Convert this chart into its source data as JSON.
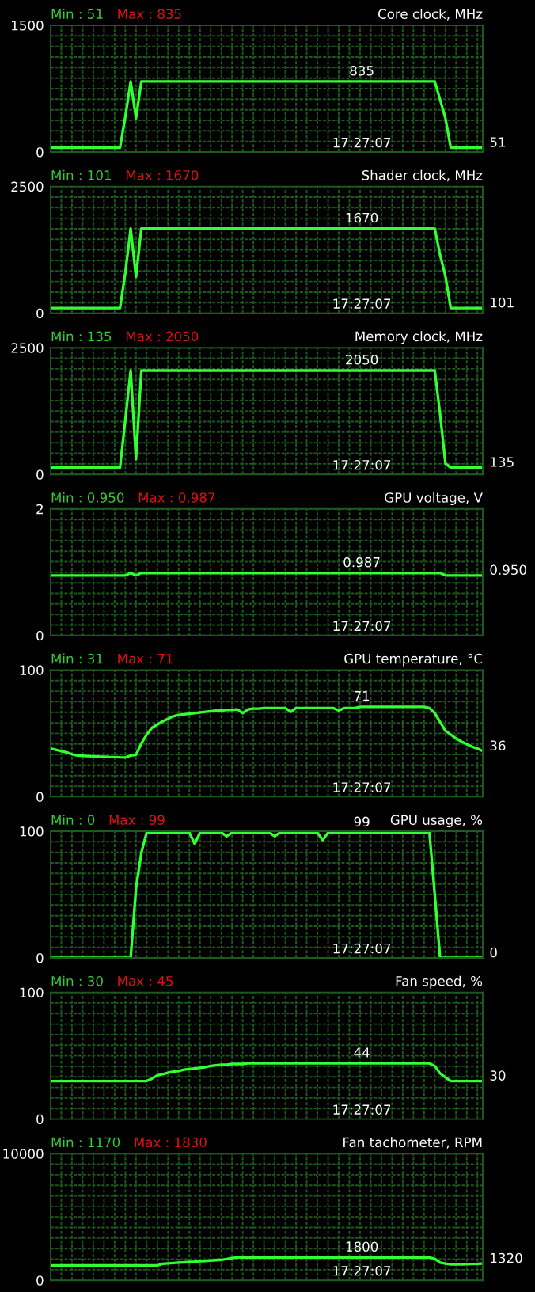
{
  "chart_data": [
    {
      "type": "line",
      "title": "Core clock, MHz",
      "annotations": [
        "Min : 51",
        "Max : 835",
        "17:27:07",
        {
          "text": "835",
          "y": 835
        },
        "51"
      ],
      "categories": [
        null,
        null,
        null,
        null,
        null,
        null,
        null,
        null,
        null,
        null,
        null,
        null,
        null,
        null,
        null,
        null,
        null,
        null,
        null,
        null,
        null,
        null,
        null,
        null,
        null,
        null,
        null,
        null,
        null,
        null,
        null,
        null,
        null,
        null,
        null,
        null,
        null,
        null,
        null,
        null,
        null,
        null,
        null,
        null,
        null,
        null,
        null,
        null,
        null,
        null,
        null,
        null,
        null,
        null,
        null,
        null,
        null,
        null,
        null,
        null,
        null,
        null,
        null,
        null,
        null,
        null,
        null,
        null,
        null,
        null,
        null,
        null,
        null,
        null,
        null,
        null,
        null,
        null,
        null,
        null,
        null,
        null
      ],
      "series": [
        {
          "color": "#33ff33",
          "values": [
            51,
            51,
            51,
            51,
            51,
            51,
            51,
            51,
            51,
            51,
            51,
            51,
            51,
            51,
            420,
            835,
            400,
            835,
            835,
            835,
            835,
            835,
            835,
            835,
            835,
            835,
            835,
            835,
            835,
            835,
            835,
            835,
            835,
            835,
            835,
            835,
            835,
            835,
            835,
            835,
            835,
            835,
            835,
            835,
            835,
            835,
            835,
            835,
            835,
            835,
            835,
            835,
            835,
            835,
            835,
            835,
            835,
            835,
            835,
            835,
            835,
            835,
            835,
            835,
            835,
            835,
            835,
            835,
            835,
            835,
            835,
            835,
            835,
            620,
            400,
            51,
            51,
            51,
            51,
            51,
            51,
            51
          ]
        }
      ],
      "ylim": [
        0,
        1500
      ],
      "yticks": [
        0,
        {
          "value": 125,
          "label": null
        },
        {
          "value": 250,
          "label": null
        },
        {
          "value": 375,
          "label": null
        },
        {
          "value": 500,
          "label": null
        },
        {
          "value": 625,
          "label": null
        },
        {
          "value": 750,
          "label": null
        },
        {
          "value": 875,
          "label": null
        },
        {
          "value": 1000,
          "label": null
        },
        {
          "value": 1125,
          "label": null
        },
        {
          "value": 1250,
          "label": null
        },
        {
          "value": 1375,
          "label": null
        },
        1500
      ],
      "tick_labels": "y",
      "grid": true
    },
    {
      "type": "line",
      "title": "Shader clock, MHz",
      "annotations": [
        "Min : 101",
        "Max : 1670",
        "17:27:07",
        {
          "text": "1670",
          "y": 1670
        },
        "101"
      ],
      "categories": [
        null,
        null,
        null,
        null,
        null,
        null,
        null,
        null,
        null,
        null,
        null,
        null,
        null,
        null,
        null,
        null,
        null,
        null,
        null,
        null,
        null,
        null,
        null,
        null,
        null,
        null,
        null,
        null,
        null,
        null,
        null,
        null,
        null,
        null,
        null,
        null,
        null,
        null,
        null,
        null,
        null,
        null,
        null,
        null,
        null,
        null,
        null,
        null,
        null,
        null,
        null,
        null,
        null,
        null,
        null,
        null,
        null,
        null,
        null,
        null,
        null,
        null,
        null,
        null,
        null,
        null,
        null,
        null,
        null,
        null,
        null,
        null,
        null,
        null,
        null,
        null,
        null,
        null,
        null,
        null,
        null,
        null
      ],
      "series": [
        {
          "color": "#33ff33",
          "values": [
            101,
            101,
            101,
            101,
            101,
            101,
            101,
            101,
            101,
            101,
            101,
            101,
            101,
            101,
            800,
            1670,
            720,
            1670,
            1670,
            1670,
            1670,
            1670,
            1670,
            1670,
            1670,
            1670,
            1670,
            1670,
            1670,
            1670,
            1670,
            1670,
            1670,
            1670,
            1670,
            1670,
            1670,
            1670,
            1670,
            1670,
            1670,
            1670,
            1670,
            1670,
            1670,
            1670,
            1670,
            1670,
            1670,
            1670,
            1670,
            1670,
            1670,
            1670,
            1670,
            1670,
            1670,
            1670,
            1670,
            1670,
            1670,
            1670,
            1670,
            1670,
            1670,
            1670,
            1670,
            1670,
            1670,
            1670,
            1670,
            1670,
            1670,
            1150,
            730,
            101,
            101,
            101,
            101,
            101,
            101,
            101
          ]
        }
      ],
      "ylim": [
        0,
        2500
      ],
      "yticks": [
        0,
        {
          "value": 208.3,
          "label": null
        },
        {
          "value": 416.7,
          "label": null
        },
        {
          "value": 625,
          "label": null
        },
        {
          "value": 833.3,
          "label": null
        },
        {
          "value": 1041.7,
          "label": null
        },
        {
          "value": 1250,
          "label": null
        },
        {
          "value": 1458.3,
          "label": null
        },
        {
          "value": 1666.7,
          "label": null
        },
        {
          "value": 1875,
          "label": null
        },
        {
          "value": 2083.3,
          "label": null
        },
        {
          "value": 2291.7,
          "label": null
        },
        2500
      ],
      "tick_labels": "y",
      "grid": true
    },
    {
      "type": "line",
      "title": "Memory clock, MHz",
      "annotations": [
        "Min : 135",
        "Max : 2050",
        "17:27:07",
        {
          "text": "2050",
          "y": 2050
        },
        "135"
      ],
      "categories": [
        null,
        null,
        null,
        null,
        null,
        null,
        null,
        null,
        null,
        null,
        null,
        null,
        null,
        null,
        null,
        null,
        null,
        null,
        null,
        null,
        null,
        null,
        null,
        null,
        null,
        null,
        null,
        null,
        null,
        null,
        null,
        null,
        null,
        null,
        null,
        null,
        null,
        null,
        null,
        null,
        null,
        null,
        null,
        null,
        null,
        null,
        null,
        null,
        null,
        null,
        null,
        null,
        null,
        null,
        null,
        null,
        null,
        null,
        null,
        null,
        null,
        null,
        null,
        null,
        null,
        null,
        null,
        null,
        null,
        null,
        null,
        null,
        null,
        null,
        null,
        null,
        null,
        null,
        null,
        null,
        null,
        null
      ],
      "series": [
        {
          "color": "#33ff33",
          "values": [
            135,
            135,
            135,
            135,
            135,
            135,
            135,
            135,
            135,
            135,
            135,
            135,
            135,
            135,
            1080,
            2050,
            300,
            2050,
            2050,
            2050,
            2050,
            2050,
            2050,
            2050,
            2050,
            2050,
            2050,
            2050,
            2050,
            2050,
            2050,
            2050,
            2050,
            2050,
            2050,
            2050,
            2050,
            2050,
            2050,
            2050,
            2050,
            2050,
            2050,
            2050,
            2050,
            2050,
            2050,
            2050,
            2050,
            2050,
            2050,
            2050,
            2050,
            2050,
            2050,
            2050,
            2050,
            2050,
            2050,
            2050,
            2050,
            2050,
            2050,
            2050,
            2050,
            2050,
            2050,
            2050,
            2050,
            2050,
            2050,
            2050,
            2050,
            1190,
            215,
            135,
            135,
            135,
            135,
            135,
            135,
            135
          ]
        }
      ],
      "ylim": [
        0,
        2500
      ],
      "yticks": [
        0,
        {
          "value": 208.3,
          "label": null
        },
        {
          "value": 416.7,
          "label": null
        },
        {
          "value": 625,
          "label": null
        },
        {
          "value": 833.3,
          "label": null
        },
        {
          "value": 1041.7,
          "label": null
        },
        {
          "value": 1250,
          "label": null
        },
        {
          "value": 1458.3,
          "label": null
        },
        {
          "value": 1666.7,
          "label": null
        },
        {
          "value": 1875,
          "label": null
        },
        {
          "value": 2083.3,
          "label": null
        },
        {
          "value": 2291.7,
          "label": null
        },
        2500
      ],
      "tick_labels": "y",
      "grid": true
    },
    {
      "type": "line",
      "title": "GPU voltage, V",
      "annotations": [
        "Min : 0.950",
        "Max : 0.987",
        "17:27:07",
        {
          "text": "0.987",
          "y": 0.987
        },
        "0.950"
      ],
      "categories": [
        null,
        null,
        null,
        null,
        null,
        null,
        null,
        null,
        null,
        null,
        null,
        null,
        null,
        null,
        null,
        null,
        null,
        null,
        null,
        null,
        null,
        null,
        null,
        null,
        null,
        null,
        null,
        null,
        null,
        null,
        null,
        null,
        null,
        null,
        null,
        null,
        null,
        null,
        null,
        null,
        null,
        null,
        null,
        null,
        null,
        null,
        null,
        null,
        null,
        null,
        null,
        null,
        null,
        null,
        null,
        null,
        null,
        null,
        null,
        null,
        null,
        null,
        null,
        null,
        null,
        null,
        null,
        null,
        null,
        null,
        null,
        null,
        null,
        null,
        null,
        null,
        null,
        null,
        null,
        null,
        null,
        null
      ],
      "series": [
        {
          "color": "#33ff33",
          "values": [
            0.95,
            0.95,
            0.95,
            0.95,
            0.95,
            0.95,
            0.95,
            0.95,
            0.95,
            0.95,
            0.95,
            0.95,
            0.95,
            0.95,
            0.95,
            0.987,
            0.95,
            0.987,
            0.987,
            0.987,
            0.987,
            0.987,
            0.987,
            0.987,
            0.987,
            0.987,
            0.987,
            0.987,
            0.987,
            0.987,
            0.987,
            0.987,
            0.987,
            0.987,
            0.987,
            0.987,
            0.987,
            0.987,
            0.987,
            0.987,
            0.987,
            0.987,
            0.987,
            0.987,
            0.987,
            0.987,
            0.987,
            0.987,
            0.987,
            0.987,
            0.987,
            0.987,
            0.987,
            0.987,
            0.987,
            0.987,
            0.987,
            0.987,
            0.987,
            0.987,
            0.987,
            0.987,
            0.987,
            0.987,
            0.987,
            0.987,
            0.987,
            0.987,
            0.987,
            0.987,
            0.987,
            0.987,
            0.987,
            0.987,
            0.95,
            0.95,
            0.95,
            0.95,
            0.95,
            0.95,
            0.95,
            0.95
          ]
        }
      ],
      "ylim": [
        0,
        2
      ],
      "yticks": [
        0,
        {
          "value": 0.167,
          "label": null
        },
        {
          "value": 0.333,
          "label": null
        },
        {
          "value": 0.5,
          "label": null
        },
        {
          "value": 0.667,
          "label": null
        },
        {
          "value": 0.833,
          "label": null
        },
        {
          "value": 1,
          "label": null
        },
        {
          "value": 1.167,
          "label": null
        },
        {
          "value": 1.333,
          "label": null
        },
        {
          "value": 1.5,
          "label": null
        },
        {
          "value": 1.667,
          "label": null
        },
        {
          "value": 1.833,
          "label": null
        },
        2
      ],
      "tick_labels": "y",
      "grid": true
    },
    {
      "type": "line",
      "title": "GPU temperature, °C",
      "annotations": [
        "Min : 31",
        "Max : 71",
        "17:27:07",
        {
          "text": "71",
          "y": 71
        },
        "36"
      ],
      "categories": [
        null,
        null,
        null,
        null,
        null,
        null,
        null,
        null,
        null,
        null,
        null,
        null,
        null,
        null,
        null,
        null,
        null,
        null,
        null,
        null,
        null,
        null,
        null,
        null,
        null,
        null,
        null,
        null,
        null,
        null,
        null,
        null,
        null,
        null,
        null,
        null,
        null,
        null,
        null,
        null,
        null,
        null,
        null,
        null,
        null,
        null,
        null,
        null,
        null,
        null,
        null,
        null,
        null,
        null,
        null,
        null,
        null,
        null,
        null,
        null,
        null,
        null,
        null,
        null,
        null,
        null,
        null,
        null,
        null,
        null,
        null,
        null,
        null,
        null,
        null,
        null,
        null,
        null,
        null,
        null,
        null,
        null
      ],
      "series": [
        {
          "color": "#33ff33",
          "values": [
            38,
            37,
            36,
            35,
            33.5,
            32.5,
            32.3,
            32.1,
            31.9,
            31.7,
            31.6,
            31.4,
            31.3,
            31.1,
            31,
            32.5,
            33,
            42,
            49,
            54.5,
            57,
            59.5,
            61.5,
            63.5,
            64.5,
            65,
            65.5,
            66,
            66.5,
            67,
            67.5,
            68,
            68,
            68.5,
            68.5,
            69,
            66,
            69,
            69.5,
            69.5,
            70,
            70,
            70,
            70,
            70,
            67,
            70,
            70,
            70,
            70,
            70,
            70,
            70,
            70,
            68,
            70,
            70,
            70,
            71,
            71,
            71,
            71,
            71,
            71,
            71,
            71,
            71,
            71,
            71,
            71,
            71,
            70,
            66,
            59,
            52,
            49,
            46,
            43.5,
            41.5,
            39.5,
            38,
            36
          ]
        }
      ],
      "ylim": [
        0,
        100
      ],
      "yticks": [
        0,
        {
          "value": 8.3,
          "label": null
        },
        {
          "value": 16.7,
          "label": null
        },
        {
          "value": 25,
          "label": null
        },
        {
          "value": 33.3,
          "label": null
        },
        {
          "value": 41.7,
          "label": null
        },
        {
          "value": 50,
          "label": null
        },
        {
          "value": 58.3,
          "label": null
        },
        {
          "value": 66.7,
          "label": null
        },
        {
          "value": 75,
          "label": null
        },
        {
          "value": 83.3,
          "label": null
        },
        {
          "value": 91.7,
          "label": null
        },
        100
      ],
      "tick_labels": "y",
      "grid": true
    },
    {
      "type": "line",
      "title": "GPU usage, %",
      "annotations": [
        "Min : 0",
        "Max : 99",
        "17:27:07",
        {
          "text": "99",
          "y": 99
        },
        "0"
      ],
      "categories": [
        null,
        null,
        null,
        null,
        null,
        null,
        null,
        null,
        null,
        null,
        null,
        null,
        null,
        null,
        null,
        null,
        null,
        null,
        null,
        null,
        null,
        null,
        null,
        null,
        null,
        null,
        null,
        null,
        null,
        null,
        null,
        null,
        null,
        null,
        null,
        null,
        null,
        null,
        null,
        null,
        null,
        null,
        null,
        null,
        null,
        null,
        null,
        null,
        null,
        null,
        null,
        null,
        null,
        null,
        null,
        null,
        null,
        null,
        null,
        null,
        null,
        null,
        null,
        null,
        null,
        null,
        null,
        null,
        null,
        null,
        null,
        null,
        null,
        null,
        null,
        null,
        null,
        null,
        null,
        null,
        null,
        null
      ],
      "series": [
        {
          "color": "#33ff33",
          "values": [
            0,
            0,
            0,
            0,
            0,
            0,
            0,
            0,
            0,
            0,
            0,
            0,
            0,
            0,
            0,
            0,
            55,
            83,
            99,
            99,
            99,
            99,
            99,
            99,
            99,
            99,
            99,
            90,
            99,
            99,
            99,
            99,
            99,
            96,
            99,
            99,
            99,
            99,
            99,
            99,
            99,
            99,
            96,
            99,
            99,
            99,
            99,
            99,
            99,
            99,
            99,
            93,
            99,
            99,
            99,
            99,
            99,
            99,
            99,
            99,
            99,
            99,
            99,
            99,
            99,
            99,
            99,
            99,
            99,
            99,
            99,
            99,
            50,
            0,
            0,
            0,
            0,
            0,
            0,
            0,
            0,
            0
          ]
        }
      ],
      "ylim": [
        0,
        100
      ],
      "yticks": [
        0,
        {
          "value": 8.3,
          "label": null
        },
        {
          "value": 16.7,
          "label": null
        },
        {
          "value": 25,
          "label": null
        },
        {
          "value": 33.3,
          "label": null
        },
        {
          "value": 41.7,
          "label": null
        },
        {
          "value": 50,
          "label": null
        },
        {
          "value": 58.3,
          "label": null
        },
        {
          "value": 66.7,
          "label": null
        },
        {
          "value": 75,
          "label": null
        },
        {
          "value": 83.3,
          "label": null
        },
        {
          "value": 91.7,
          "label": null
        },
        100
      ],
      "tick_labels": "y",
      "grid": true
    },
    {
      "type": "line",
      "title": "Fan speed, %",
      "annotations": [
        "Min : 30",
        "Max : 45",
        "17:27:07",
        {
          "text": "44",
          "y": 44
        },
        "30"
      ],
      "categories": [
        null,
        null,
        null,
        null,
        null,
        null,
        null,
        null,
        null,
        null,
        null,
        null,
        null,
        null,
        null,
        null,
        null,
        null,
        null,
        null,
        null,
        null,
        null,
        null,
        null,
        null,
        null,
        null,
        null,
        null,
        null,
        null,
        null,
        null,
        null,
        null,
        null,
        null,
        null,
        null,
        null,
        null,
        null,
        null,
        null,
        null,
        null,
        null,
        null,
        null,
        null,
        null,
        null,
        null,
        null,
        null,
        null,
        null,
        null,
        null,
        null,
        null,
        null,
        null,
        null,
        null,
        null,
        null,
        null,
        null,
        null,
        null,
        null,
        null,
        null,
        null,
        null,
        null,
        null,
        null,
        null,
        null
      ],
      "series": [
        {
          "color": "#33ff33",
          "values": [
            30,
            30,
            30,
            30,
            30,
            30,
            30,
            30,
            30,
            30,
            30,
            30,
            30,
            30,
            30,
            30,
            30,
            30,
            30,
            32,
            34.5,
            35.5,
            36.5,
            37.5,
            38,
            39,
            39.5,
            40,
            40.5,
            41,
            42,
            42.5,
            43,
            43,
            43.5,
            43.5,
            43.5,
            44,
            44,
            44,
            44,
            44,
            44,
            44,
            44,
            44,
            44,
            44,
            44,
            44,
            44,
            44,
            44,
            44,
            44,
            44,
            44,
            44,
            44,
            44,
            44,
            44,
            44,
            44,
            44,
            44,
            44,
            44,
            44,
            44,
            44,
            44,
            42,
            36,
            33,
            30,
            30,
            30,
            30,
            30,
            30,
            30
          ]
        }
      ],
      "ylim": [
        0,
        100
      ],
      "yticks": [
        0,
        {
          "value": 8.3,
          "label": null
        },
        {
          "value": 16.7,
          "label": null
        },
        {
          "value": 25,
          "label": null
        },
        {
          "value": 33.3,
          "label": null
        },
        {
          "value": 41.7,
          "label": null
        },
        {
          "value": 50,
          "label": null
        },
        {
          "value": 58.3,
          "label": null
        },
        {
          "value": 66.7,
          "label": null
        },
        {
          "value": 75,
          "label": null
        },
        {
          "value": 83.3,
          "label": null
        },
        {
          "value": 91.7,
          "label": null
        },
        100
      ],
      "tick_labels": "y",
      "grid": true
    },
    {
      "type": "line",
      "title": "Fan tachometer, RPM",
      "annotations": [
        "Min : 1170",
        "Max : 1830",
        "17:27:07",
        {
          "text": "1800",
          "y": 1800
        },
        "1320"
      ],
      "categories": [
        null,
        null,
        null,
        null,
        null,
        null,
        null,
        null,
        null,
        null,
        null,
        null,
        null,
        null,
        null,
        null,
        null,
        null,
        null,
        null,
        null,
        null,
        null,
        null,
        null,
        null,
        null,
        null,
        null,
        null,
        null,
        null,
        null,
        null,
        null,
        null,
        null,
        null,
        null,
        null,
        null,
        null,
        null,
        null,
        null,
        null,
        null,
        null,
        null,
        null,
        null,
        null,
        null,
        null,
        null,
        null,
        null,
        null,
        null,
        null,
        null,
        null,
        null,
        null,
        null,
        null,
        null,
        null,
        null,
        null,
        null,
        null,
        null,
        null,
        null,
        null,
        null,
        null,
        null,
        null,
        null,
        null
      ],
      "series": [
        {
          "color": "#33ff33",
          "values": [
            1170,
            1170,
            1170,
            1170,
            1170,
            1170,
            1170,
            1170,
            1170,
            1170,
            1170,
            1170,
            1170,
            1170,
            1170,
            1170,
            1170,
            1170,
            1170,
            1170,
            1170,
            1300,
            1330,
            1360,
            1400,
            1420,
            1450,
            1470,
            1500,
            1530,
            1560,
            1590,
            1620,
            1680,
            1750,
            1800,
            1800,
            1800,
            1800,
            1800,
            1800,
            1800,
            1800,
            1800,
            1800,
            1800,
            1800,
            1800,
            1800,
            1800,
            1800,
            1800,
            1800,
            1800,
            1800,
            1800,
            1800,
            1800,
            1800,
            1800,
            1800,
            1800,
            1800,
            1800,
            1800,
            1800,
            1800,
            1800,
            1800,
            1800,
            1800,
            1800,
            1700,
            1390,
            1320,
            1250,
            1250,
            1260,
            1280,
            1290,
            1300,
            1320
          ]
        }
      ],
      "ylim": [
        0,
        10000
      ],
      "yticks": [
        0,
        {
          "value": 833.3,
          "label": null
        },
        {
          "value": 1666.7,
          "label": null
        },
        {
          "value": 2500,
          "label": null
        },
        {
          "value": 3333.3,
          "label": null
        },
        {
          "value": 4166.7,
          "label": null
        },
        {
          "value": 5000,
          "label": null
        },
        {
          "value": 5833.3,
          "label": null
        },
        {
          "value": 6666.7,
          "label": null
        },
        {
          "value": 7500,
          "label": null
        },
        {
          "value": 8333.3,
          "label": null
        },
        {
          "value": 9166.7,
          "label": null
        },
        10000
      ],
      "tick_labels": "y",
      "grid": true
    }
  ]
}
